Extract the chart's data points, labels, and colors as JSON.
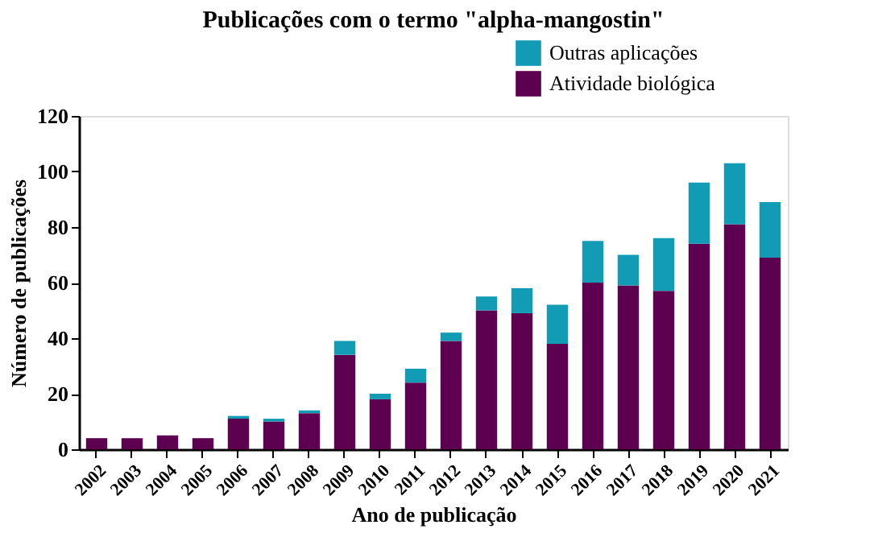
{
  "chart_data": {
    "type": "bar",
    "title": "Publicações com o termo \"alpha-mangostin\"",
    "xlabel": "Ano de publicação",
    "ylabel": "Número de publicações",
    "categories": [
      "2002",
      "2003",
      "2004",
      "2005",
      "2006",
      "2007",
      "2008",
      "2009",
      "2010",
      "2011",
      "2012",
      "2013",
      "2014",
      "2015",
      "2016",
      "2017",
      "2018",
      "2019",
      "2020",
      "2021"
    ],
    "stacked": true,
    "series": [
      {
        "name": "Atividade biológica",
        "color": "#5e0050",
        "values": [
          4,
          4,
          5,
          4,
          11,
          10,
          13,
          34,
          18,
          24,
          39,
          50,
          49,
          38,
          60,
          59,
          57,
          74,
          81,
          69
        ]
      },
      {
        "name": "Outras aplicações",
        "color": "#129bb5",
        "values": [
          0,
          0,
          0,
          0,
          1,
          1,
          1,
          5,
          2,
          5,
          3,
          5,
          9,
          14,
          15,
          11,
          19,
          22,
          22,
          20
        ]
      }
    ],
    "ylim": [
      0,
      120
    ],
    "yticks": [
      0,
      20,
      40,
      60,
      80,
      100,
      120
    ],
    "grid": false,
    "legend": "top right"
  }
}
